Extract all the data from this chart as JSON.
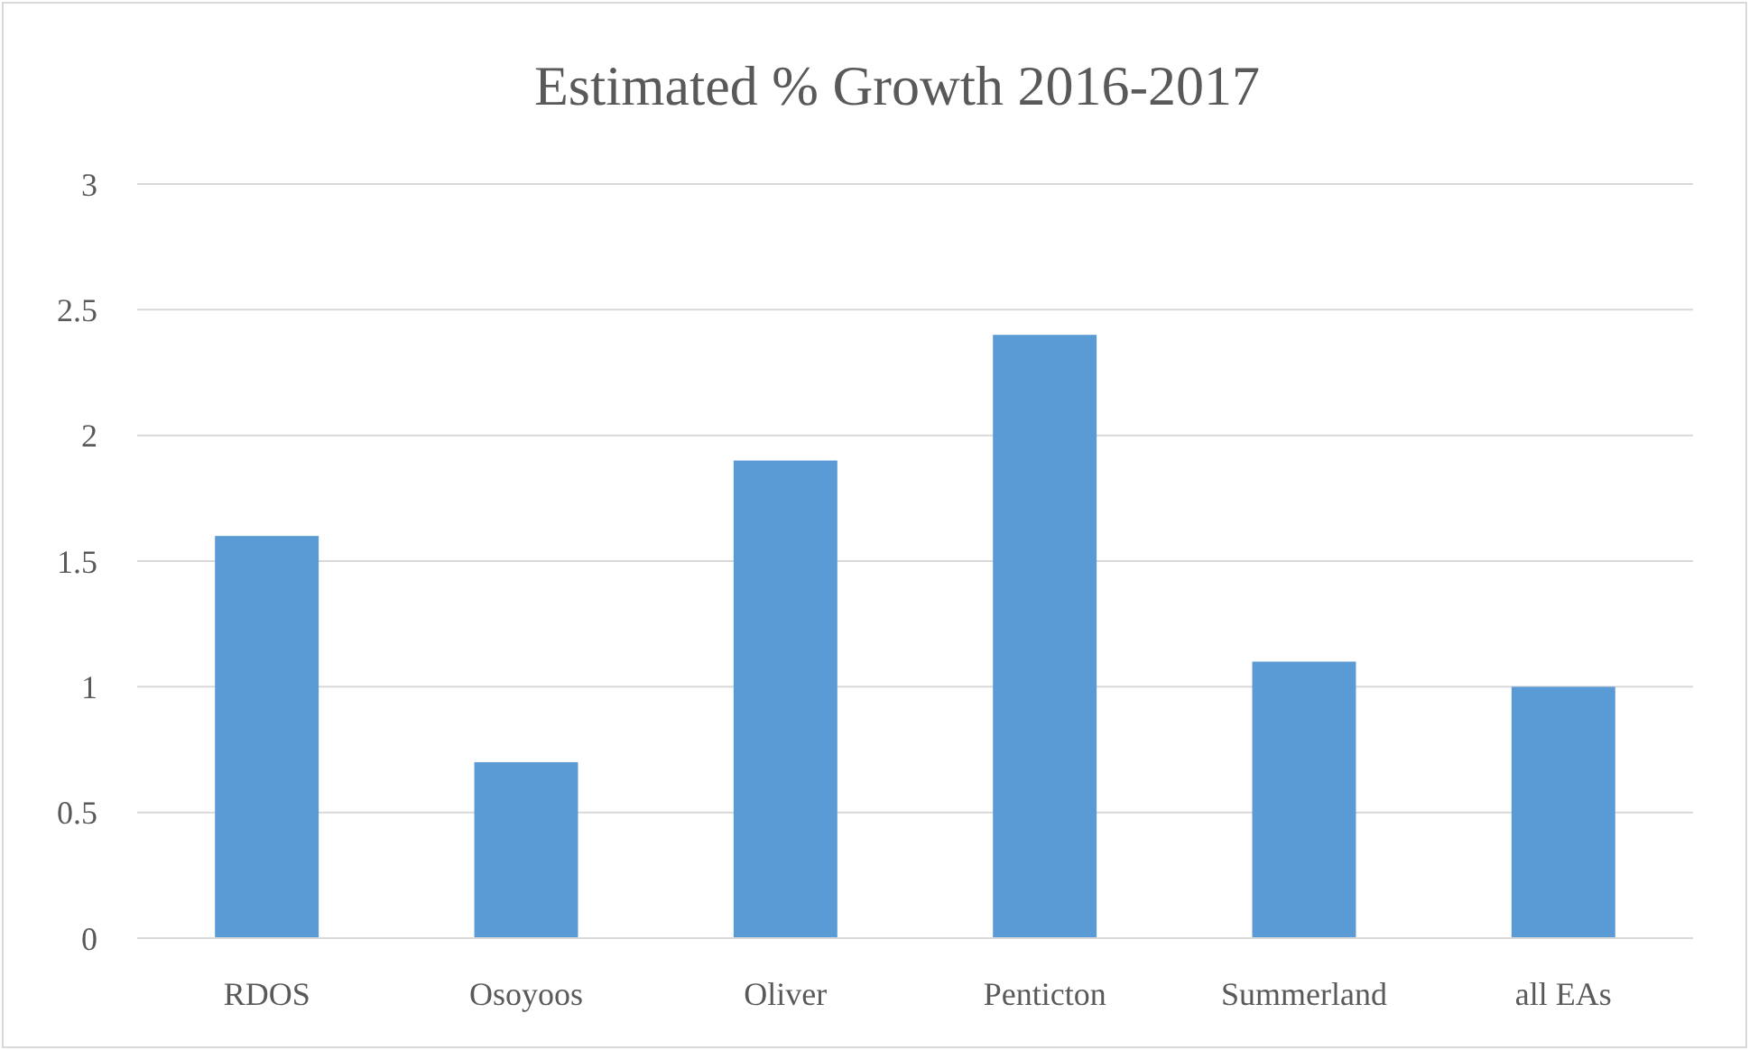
{
  "chart_data": {
    "type": "bar",
    "title": "Estimated % Growth 2016-2017",
    "categories": [
      "RDOS",
      "Osoyoos",
      "Oliver",
      "Penticton",
      "Summerland",
      "all EAs"
    ],
    "values": [
      1.6,
      0.7,
      1.9,
      2.4,
      1.1,
      1.0
    ],
    "color": "#5b9bd5",
    "ylim": [
      0,
      3
    ],
    "yticks": [
      0,
      0.5,
      1,
      1.5,
      2,
      2.5,
      3
    ],
    "grid": "y"
  }
}
